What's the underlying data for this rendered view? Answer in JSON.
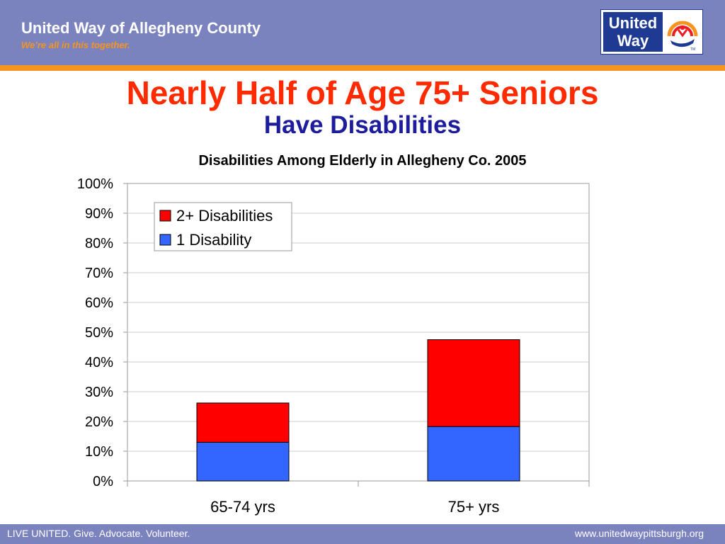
{
  "header": {
    "org_name": "United Way of Allegheny County",
    "tagline": "We’re all in this together.",
    "logo": {
      "line1": "United",
      "line2": "Way",
      "mark": "TM",
      "icon": "hand-rainbow-person-icon"
    }
  },
  "slide": {
    "title": "Nearly Half of Age 75+ Seniors",
    "subtitle": "Have Disabilities"
  },
  "chart_data": {
    "type": "bar",
    "stacked": true,
    "title": "Disabilities Among Elderly in Allegheny Co. 2005",
    "categories": [
      "65-74 yrs",
      "75+ yrs"
    ],
    "series": [
      {
        "name": "1 Disability",
        "values": [
          13,
          18.3
        ],
        "color": "#3366ff"
      },
      {
        "name": "2+ Disabilities",
        "values": [
          13.2,
          29.2
        ],
        "color": "#ff0000"
      }
    ],
    "ylim": [
      0,
      100
    ],
    "yticks": [
      "0%",
      "10%",
      "20%",
      "30%",
      "40%",
      "50%",
      "60%",
      "70%",
      "80%",
      "90%",
      "100%"
    ],
    "legend_order": [
      "2+ Disabilities",
      "1 Disability"
    ],
    "legend_position": "top-left",
    "grid": true
  },
  "footer": {
    "slogan": "LIVE UNITED. Give. Advocate. Volunteer.",
    "url": "www.unitedwaypittsburgh.org"
  }
}
